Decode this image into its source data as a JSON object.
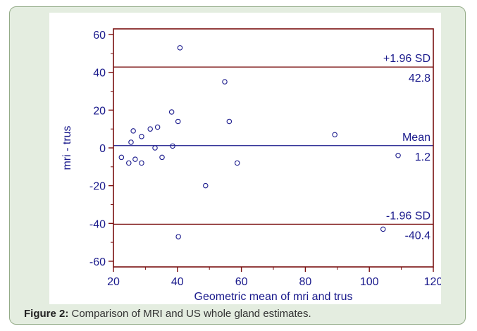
{
  "figure": {
    "caption_label": "Figure 2:",
    "caption_text": " Comparison of MRI and US whole gland estimates."
  },
  "colors": {
    "axis": "#7a1010",
    "text": "#1a1a8c",
    "mean_line": "#1a1a8c",
    "sd_line": "#7a1010",
    "points": "#1a1a8c",
    "panel_bg": "#e4ede0"
  },
  "chart_data": {
    "type": "scatter",
    "xlabel": "Geometric mean of mri and trus",
    "ylabel": "mri - trus",
    "xlim": [
      20,
      120
    ],
    "ylim": [
      -63,
      63
    ],
    "xticks": [
      20,
      40,
      60,
      80,
      100,
      120
    ],
    "yticks": [
      -60,
      -40,
      -20,
      0,
      20,
      40,
      60
    ],
    "grid": false,
    "points": [
      {
        "x": 40.8,
        "y": 53
      },
      {
        "x": 54.8,
        "y": 35
      },
      {
        "x": 38.2,
        "y": 19
      },
      {
        "x": 40.2,
        "y": 14
      },
      {
        "x": 56.2,
        "y": 14
      },
      {
        "x": 33.8,
        "y": 11
      },
      {
        "x": 31.5,
        "y": 10
      },
      {
        "x": 26.2,
        "y": 9
      },
      {
        "x": 28.8,
        "y": 6
      },
      {
        "x": 25.5,
        "y": 3
      },
      {
        "x": 38.5,
        "y": 1
      },
      {
        "x": 33,
        "y": 0
      },
      {
        "x": 22.5,
        "y": -5
      },
      {
        "x": 35.2,
        "y": -5
      },
      {
        "x": 24.8,
        "y": -8
      },
      {
        "x": 26.8,
        "y": -6
      },
      {
        "x": 28.8,
        "y": -8
      },
      {
        "x": 58.7,
        "y": -8
      },
      {
        "x": 89.2,
        "y": 7
      },
      {
        "x": 109,
        "y": -4
      },
      {
        "x": 48.8,
        "y": -20
      },
      {
        "x": 104.3,
        "y": -43
      },
      {
        "x": 40.3,
        "y": -47
      }
    ],
    "reference_lines": [
      {
        "name": "+1.96 SD",
        "value": 42.8,
        "value_label": "42.8",
        "style": "sd"
      },
      {
        "name": "Mean",
        "value": 1.2,
        "value_label": "1.2",
        "style": "mean"
      },
      {
        "name": "-1.96 SD",
        "value": -40.4,
        "value_label": "-40.4",
        "style": "sd"
      }
    ]
  }
}
